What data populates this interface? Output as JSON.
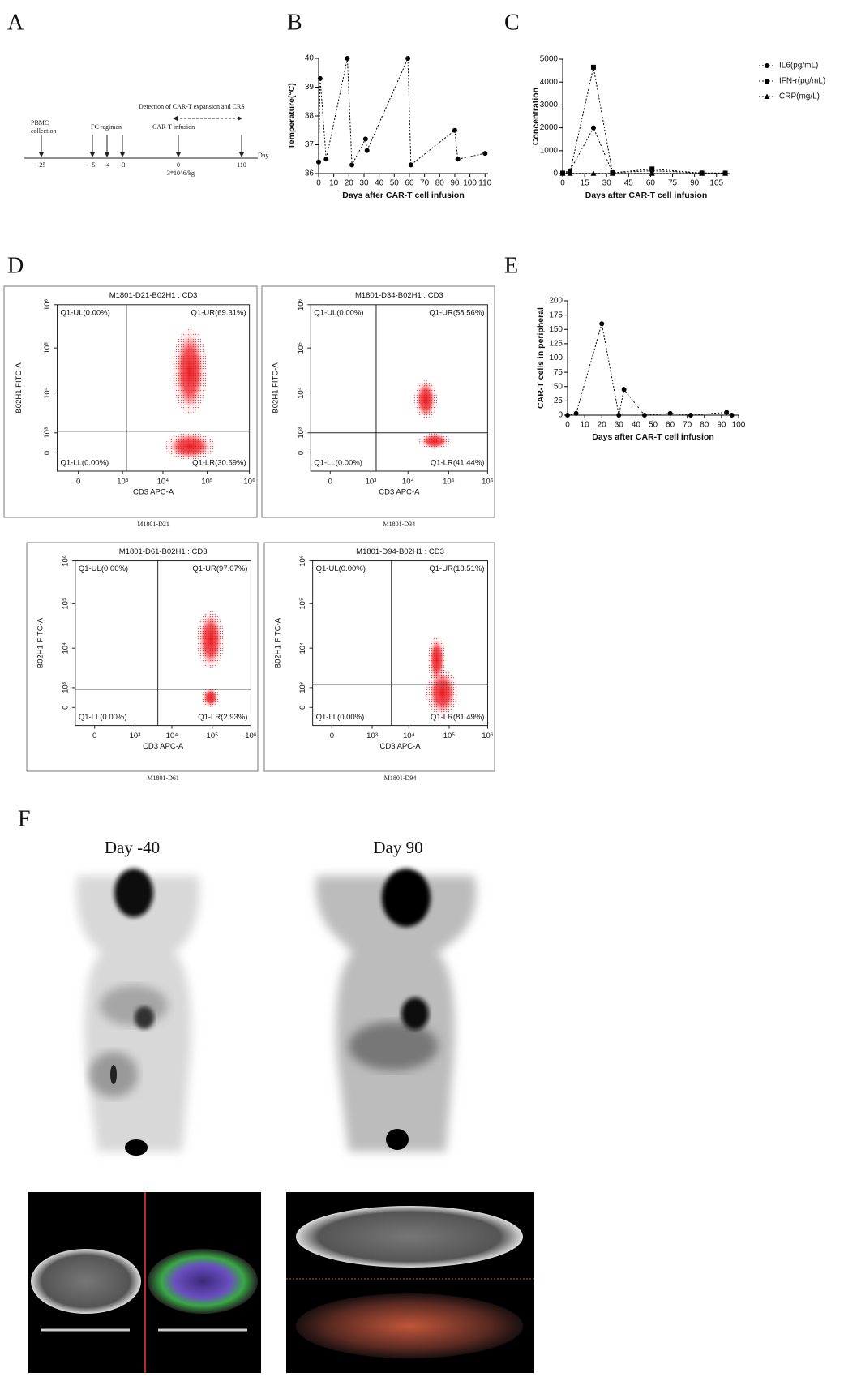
{
  "panel_labels": [
    "A",
    "B",
    "C",
    "D",
    "E",
    "F"
  ],
  "timeline": {
    "ticks": [
      "-25",
      "-5",
      "-4",
      "-3",
      "0",
      "110"
    ],
    "unit": "Day",
    "notes": [
      "PBMC",
      "collection",
      "FC regimen",
      "Detection of CAR-T expansion and CRS",
      "CAR-T infusion",
      "3*10^6/kg"
    ]
  },
  "chart_data": [
    {
      "type": "line",
      "y_label": "Temperature(°C)",
      "x_label": "Days after CAR-T cell infusion",
      "x": [
        0,
        1,
        5,
        19,
        22,
        31,
        32,
        59,
        61,
        90,
        92,
        110
      ],
      "series": [
        {
          "name": null,
          "color": "#000000",
          "marker": "circle",
          "values": [
            36.4,
            39.3,
            36.5,
            40,
            36.3,
            37.2,
            36.8,
            40,
            36.3,
            37.5,
            36.5,
            36.7
          ]
        }
      ],
      "xlim": [
        0,
        112
      ],
      "xticks": [
        0,
        10,
        20,
        30,
        40,
        50,
        60,
        70,
        80,
        90,
        100,
        110
      ],
      "ylim": [
        36,
        40
      ],
      "yticks": [
        36,
        37,
        38,
        39,
        40
      ]
    },
    {
      "type": "line",
      "y_label": "Concentration",
      "x_label": "Days after CAR-T cell infusion",
      "x": [
        0,
        5,
        21,
        34,
        61,
        95,
        111
      ],
      "series": [
        {
          "name": "IL6(pg/mL)",
          "color": "#000000",
          "marker": "circle",
          "values": [
            30,
            120,
            2000,
            40,
            120,
            30,
            20
          ]
        },
        {
          "name": "IFN-r(pg/mL)",
          "color": "#000000",
          "marker": "square",
          "values": [
            20,
            60,
            4650,
            30,
            200,
            20,
            20
          ]
        },
        {
          "name": "CRP(mg/L)",
          "color": "#000000",
          "marker": "triangle",
          "values": [
            10,
            10,
            10,
            10,
            10,
            10,
            10
          ]
        }
      ],
      "xlim": [
        0,
        114
      ],
      "xticks": [
        0,
        15,
        30,
        45,
        60,
        75,
        90,
        105
      ],
      "ylim": [
        0,
        5000
      ],
      "yticks": [
        0,
        1000,
        2000,
        3000,
        4000,
        5000
      ]
    },
    {
      "type": "line",
      "y_label": "CAR-T cells in peripheral",
      "x_label": "Days after CAR-T cell infusion",
      "x": [
        0,
        5,
        20,
        30,
        33,
        45,
        60,
        72,
        93,
        96
      ],
      "series": [
        {
          "name": null,
          "color": "#000000",
          "marker": "circle",
          "values": [
            0,
            3,
            160,
            0,
            45,
            0,
            3,
            0,
            5,
            0
          ]
        }
      ],
      "xlim": [
        0,
        100
      ],
      "xticks": [
        0,
        10,
        20,
        30,
        40,
        50,
        60,
        70,
        80,
        90,
        100
      ],
      "ylim": [
        0,
        200
      ],
      "yticks": [
        0,
        25,
        50,
        75,
        100,
        125,
        150,
        175,
        200
      ]
    }
  ],
  "flow": {
    "x_label": "CD3 APC-A",
    "y_label": "B02H1 FITC-A",
    "x_ticks": [
      "0",
      "10³",
      "10⁴",
      "10⁵",
      "10⁶"
    ],
    "y_ticks": [
      "0",
      "10³",
      "10⁴",
      "10⁵",
      "10⁶"
    ],
    "plots": [
      {
        "title": "M1801-D21-B02H1 : CD3",
        "sample": "M1801-D21",
        "quadrants": [
          "Q1-UL(0.00%)",
          "Q1-UR(69.31%)",
          "Q1-LL(0.00%)",
          "Q1-LR(30.69%)"
        ]
      },
      {
        "title": "M1801-D34-B02H1 : CD3",
        "sample": "M1801-D34",
        "quadrants": [
          "Q1-UL(0.00%)",
          "Q1-UR(58.56%)",
          "Q1-LL(0.00%)",
          "Q1-LR(41.44%)"
        ]
      },
      {
        "title": "M1801-D61-B02H1 : CD3",
        "sample": "M1801-D61",
        "quadrants": [
          "Q1-UL(0.00%)",
          "Q1-UR(97.07%)",
          "Q1-LL(0.00%)",
          "Q1-LR(2.93%)"
        ]
      },
      {
        "title": "M1801-D94-B02H1 : CD3",
        "sample": "M1801-D94",
        "quadrants": [
          "Q1-UL(0.00%)",
          "Q1-UR(18.51%)",
          "Q1-LL(0.00%)",
          "Q1-LR(81.49%)"
        ]
      }
    ]
  },
  "pet": {
    "labels": [
      "Day -40",
      "Day 90"
    ]
  }
}
